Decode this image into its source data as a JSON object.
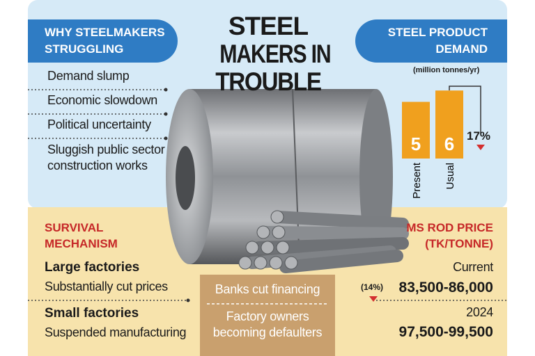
{
  "title": [
    "STEEL",
    "MAKERS IN",
    "TROUBLE"
  ],
  "why": {
    "heading": "WHY STEELMAKERS STRUGGLING",
    "items": [
      "Demand slump",
      "Economic slowdown",
      "Political uncertainty",
      "Sluggish public sector construction works"
    ]
  },
  "demand": {
    "heading": "STEEL PRODUCT DEMAND",
    "unit": "(million tonnes/yr)",
    "categories": [
      "Present",
      "Usual"
    ],
    "values": [
      5,
      6
    ],
    "change": "17%"
  },
  "survival": {
    "heading": "SURVIVAL MECHANISM",
    "groups": [
      {
        "name": "Large factories",
        "action": "Substantially cut prices"
      },
      {
        "name": "Small factories",
        "action": "Suspended manufacturing"
      }
    ]
  },
  "center": {
    "items": [
      "Banks cut financing",
      "Factory owners becoming defaulters"
    ]
  },
  "price": {
    "heading": "MS ROD PRICE (TK/TONNE)",
    "current_label": "Current",
    "current_change": "(14%)",
    "current_value": "83,500-86,000",
    "past_label": "2024",
    "past_value": "97,500-99,500"
  }
}
